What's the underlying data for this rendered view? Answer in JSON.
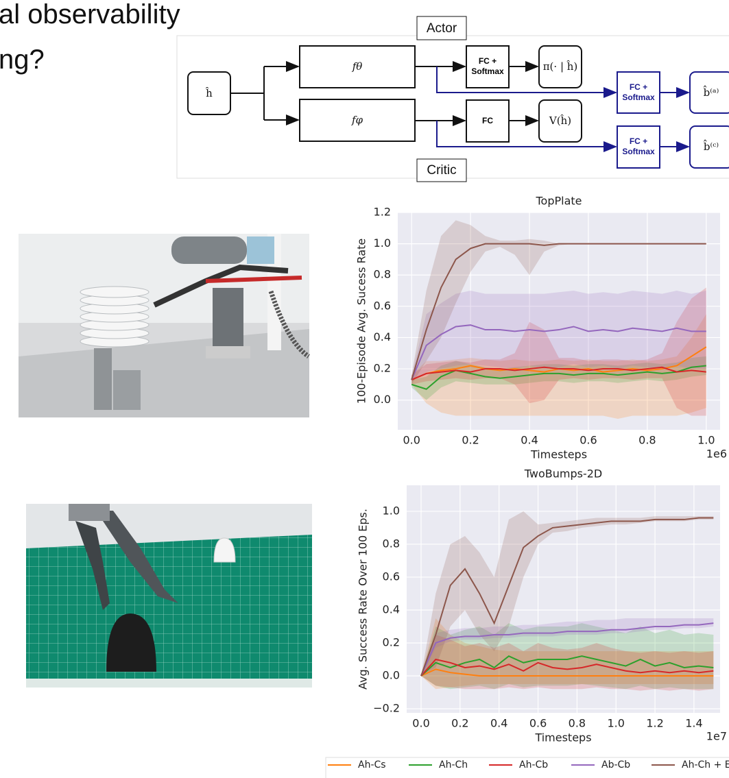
{
  "header": {
    "lines": [
      "al observability",
      "ng?"
    ]
  },
  "diagram": {
    "actor": "Actor",
    "critic": "Critic",
    "nodes": [
      {
        "lines": [
          "ĥ"
        ]
      },
      {
        "lines": [
          "fθ"
        ]
      },
      {
        "lines": [
          "fφ"
        ]
      },
      {
        "lines": [
          "FC +",
          "Softmax"
        ]
      },
      {
        "lines": [
          "π(· | ĥ)"
        ]
      },
      {
        "lines": [
          "FC"
        ]
      },
      {
        "lines": [
          "V(ĥ)"
        ]
      },
      {
        "lines": [
          "FC +",
          "Softmax"
        ]
      },
      {
        "lines": [
          "b̂⁽ᵃ⁾"
        ]
      },
      {
        "lines": [
          "FC +",
          "Softmax"
        ]
      },
      {
        "lines": [
          "b̂⁽ᶜ⁾"
        ]
      }
    ]
  },
  "chart_data": [
    {
      "type": "line",
      "title": "TopPlate",
      "xlabel": "Timesteps",
      "ylabel": "100-Episode Avg. Sucess Rate",
      "x_offset_label": "1e6",
      "x": [
        0,
        0.05,
        0.1,
        0.15,
        0.2,
        0.25,
        0.3,
        0.35,
        0.4,
        0.45,
        0.5,
        0.55,
        0.6,
        0.65,
        0.7,
        0.75,
        0.8,
        0.85,
        0.9,
        0.95,
        1.0
      ],
      "xlim": [
        -0.047,
        1.047
      ],
      "ylim": [
        -0.19,
        1.2
      ],
      "xticks": [
        {
          "value": 0,
          "label": "0.0"
        },
        0.2,
        0.4,
        0.6,
        0.8,
        {
          "value": 1,
          "label": "1.0"
        }
      ],
      "yticks": [
        {
          "value": 0,
          "label": "0.0"
        },
        0.2,
        0.4,
        0.6,
        0.8,
        {
          "value": 1,
          "label": "1.0"
        },
        1.2
      ],
      "grid": true,
      "series": [
        {
          "name": "Ah-Cs",
          "color": "#ff7f0e",
          "values": [
            0.13,
            0.17,
            0.19,
            0.2,
            0.22,
            0.2,
            0.19,
            0.2,
            0.19,
            0.18,
            0.2,
            0.19,
            0.2,
            0.18,
            0.19,
            0.2,
            0.19,
            0.2,
            0.22,
            0.28,
            0.34
          ],
          "lower": [
            0.1,
            -0.02,
            -0.08,
            -0.1,
            -0.1,
            -0.1,
            -0.1,
            -0.1,
            -0.1,
            -0.1,
            -0.1,
            -0.1,
            -0.1,
            -0.1,
            -0.12,
            -0.1,
            -0.1,
            -0.1,
            -0.1,
            -0.08,
            -0.05
          ],
          "upper": [
            0.16,
            0.25,
            0.25,
            0.26,
            0.27,
            0.26,
            0.25,
            0.26,
            0.25,
            0.25,
            0.26,
            0.25,
            0.26,
            0.25,
            0.25,
            0.26,
            0.25,
            0.26,
            0.28,
            0.4,
            0.55
          ]
        },
        {
          "name": "Ah-Ch",
          "color": "#2ca02c",
          "values": [
            0.1,
            0.07,
            0.15,
            0.19,
            0.17,
            0.15,
            0.14,
            0.15,
            0.16,
            0.17,
            0.17,
            0.16,
            0.17,
            0.17,
            0.16,
            0.17,
            0.18,
            0.17,
            0.18,
            0.21,
            0.22
          ],
          "lower": [
            0.08,
            0,
            0.08,
            0.12,
            0.11,
            0.1,
            0.1,
            0.1,
            0.11,
            0.12,
            0.12,
            0.11,
            0.12,
            0.12,
            0.11,
            0.12,
            0.13,
            0.12,
            0.13,
            0.15,
            0.16
          ],
          "upper": [
            0.13,
            0.15,
            0.22,
            0.25,
            0.23,
            0.21,
            0.2,
            0.21,
            0.22,
            0.23,
            0.23,
            0.22,
            0.23,
            0.23,
            0.22,
            0.23,
            0.24,
            0.23,
            0.24,
            0.27,
            0.28
          ]
        },
        {
          "name": "Ah-Cb",
          "color": "#d62728",
          "values": [
            0.13,
            0.17,
            0.18,
            0.19,
            0.18,
            0.2,
            0.2,
            0.19,
            0.2,
            0.21,
            0.2,
            0.2,
            0.19,
            0.2,
            0.2,
            0.19,
            0.2,
            0.21,
            0.18,
            0.19,
            0.18
          ],
          "lower": [
            0.1,
            0.12,
            0.13,
            0.14,
            0.13,
            0.14,
            0.14,
            0.1,
            -0.02,
            0,
            0.13,
            0.14,
            0.13,
            0.14,
            0.14,
            0.13,
            0.14,
            0.14,
            -0.05,
            -0.1,
            -0.1
          ],
          "upper": [
            0.16,
            0.23,
            0.24,
            0.25,
            0.24,
            0.26,
            0.26,
            0.3,
            0.5,
            0.45,
            0.27,
            0.27,
            0.25,
            0.26,
            0.26,
            0.25,
            0.26,
            0.3,
            0.5,
            0.65,
            0.72
          ]
        },
        {
          "name": "Ab-Cb",
          "color": "#9467bd",
          "values": [
            0.13,
            0.35,
            0.42,
            0.47,
            0.48,
            0.45,
            0.45,
            0.44,
            0.45,
            0.44,
            0.45,
            0.47,
            0.44,
            0.45,
            0.44,
            0.46,
            0.45,
            0.44,
            0.46,
            0.44,
            0.44
          ],
          "lower": [
            0.12,
            0.18,
            0.2,
            0.22,
            0.23,
            0.22,
            0.21,
            0.2,
            0.22,
            0.2,
            0.21,
            0.23,
            0.21,
            0.22,
            0.2,
            0.22,
            0.21,
            0.2,
            0.22,
            0.2,
            0.2
          ],
          "upper": [
            0.15,
            0.55,
            0.62,
            0.68,
            0.7,
            0.68,
            0.68,
            0.68,
            0.68,
            0.68,
            0.69,
            0.7,
            0.68,
            0.69,
            0.68,
            0.7,
            0.69,
            0.68,
            0.7,
            0.68,
            0.7
          ]
        },
        {
          "name": "Ah-Ch + E",
          "color": "#8c564b",
          "values": [
            0.13,
            0.45,
            0.72,
            0.9,
            0.97,
            1.0,
            1.0,
            1.0,
            1.0,
            0.99,
            1.0,
            1.0,
            1.0,
            1.0,
            1.0,
            1.0,
            1.0,
            1.0,
            1.0,
            1.0,
            1.0
          ],
          "lower": [
            0.1,
            0.25,
            0.4,
            0.62,
            0.82,
            0.95,
            0.98,
            0.93,
            0.8,
            0.95,
            0.99,
            1,
            1,
            1,
            1,
            1,
            1,
            1,
            1,
            1,
            1
          ],
          "upper": [
            0.16,
            0.7,
            1.05,
            1.15,
            1.12,
            1.05,
            1.02,
            1.02,
            1.03,
            1.02,
            1,
            1,
            1,
            1,
            1,
            1,
            1,
            1,
            1,
            1,
            1
          ]
        }
      ]
    },
    {
      "type": "line",
      "title": "TwoBumps-2D",
      "xlabel": "Timesteps",
      "ylabel": "Avg. Success Rate Over 100 Eps.",
      "x_offset_label": "1e7",
      "x": [
        0,
        0.075,
        0.15,
        0.225,
        0.3,
        0.375,
        0.45,
        0.525,
        0.6,
        0.675,
        0.75,
        0.825,
        0.9,
        0.975,
        1.05,
        1.125,
        1.2,
        1.275,
        1.35,
        1.425,
        1.5
      ],
      "xlim": [
        -0.074,
        1.534
      ],
      "ylim": [
        -0.225,
        1.158
      ],
      "xticks": [
        {
          "value": 0,
          "label": "0.0"
        },
        0.2,
        0.4,
        0.6,
        0.8,
        {
          "value": 1,
          "label": "1.0"
        },
        1.2,
        1.4
      ],
      "yticks": [
        {
          "value": -0.2,
          "label": "−0.2"
        },
        {
          "value": 0,
          "label": "0.0"
        },
        0.2,
        0.4,
        0.6,
        0.8,
        {
          "value": 1,
          "label": "1.0"
        }
      ],
      "grid": true,
      "series": [
        {
          "color": "#ff7f0e",
          "values": [
            0,
            0.04,
            0.02,
            0.01,
            0,
            0,
            0,
            0,
            0,
            0,
            0,
            0,
            0,
            0,
            0,
            0,
            0,
            0,
            0,
            0,
            0
          ],
          "lower": [
            0,
            -0.08,
            -0.07,
            -0.06,
            -0.05,
            -0.05,
            -0.05,
            -0.05,
            -0.05,
            -0.05,
            -0.05,
            -0.05,
            -0.05,
            -0.05,
            -0.05,
            -0.05,
            -0.05,
            -0.05,
            -0.05,
            -0.05,
            -0.05
          ],
          "upper": [
            0,
            0.35,
            0.25,
            0.2,
            0.18,
            0.16,
            0.15,
            0.15,
            0.15,
            0.15,
            0.15,
            0.15,
            0.15,
            0.15,
            0.15,
            0.15,
            0.15,
            0.15,
            0.15,
            0.15,
            0.15
          ]
        },
        {
          "color": "#2ca02c",
          "values": [
            0,
            0.08,
            0.05,
            0.08,
            0.1,
            0.05,
            0.12,
            0.08,
            0.1,
            0.1,
            0.1,
            0.12,
            0.1,
            0.08,
            0.06,
            0.1,
            0.06,
            0.08,
            0.05,
            0.06,
            0.05
          ],
          "lower": [
            0,
            -0.06,
            -0.08,
            -0.07,
            -0.06,
            -0.08,
            -0.05,
            -0.07,
            -0.06,
            -0.06,
            -0.06,
            -0.05,
            -0.06,
            -0.07,
            -0.08,
            -0.06,
            -0.08,
            -0.07,
            -0.08,
            -0.08,
            -0.08
          ],
          "upper": [
            0,
            0.3,
            0.25,
            0.28,
            0.3,
            0.25,
            0.32,
            0.28,
            0.3,
            0.3,
            0.3,
            0.32,
            0.3,
            0.28,
            0.26,
            0.3,
            0.26,
            0.28,
            0.25,
            0.26,
            0.25
          ]
        },
        {
          "color": "#d62728",
          "values": [
            0,
            0.1,
            0.08,
            0.05,
            0.06,
            0.04,
            0.07,
            0.03,
            0.08,
            0.05,
            0.04,
            0.05,
            0.07,
            0.05,
            0.03,
            0.02,
            0.03,
            0.02,
            0.03,
            0.02,
            0.03
          ],
          "lower": [
            0,
            -0.06,
            -0.07,
            -0.08,
            -0.08,
            -0.08,
            -0.07,
            -0.08,
            -0.07,
            -0.08,
            -0.08,
            -0.08,
            -0.07,
            -0.08,
            -0.08,
            -0.09,
            -0.08,
            -0.09,
            -0.08,
            -0.09,
            -0.08
          ],
          "upper": [
            0,
            0.25,
            0.22,
            0.18,
            0.2,
            0.17,
            0.2,
            0.15,
            0.2,
            0.17,
            0.16,
            0.17,
            0.2,
            0.17,
            0.15,
            0.14,
            0.15,
            0.14,
            0.15,
            0.14,
            0.15
          ]
        },
        {
          "color": "#9467bd",
          "values": [
            0,
            0.2,
            0.23,
            0.24,
            0.24,
            0.25,
            0.25,
            0.26,
            0.26,
            0.26,
            0.27,
            0.27,
            0.27,
            0.28,
            0.28,
            0.29,
            0.3,
            0.3,
            0.31,
            0.31,
            0.32
          ],
          "lower": [
            0,
            0.17,
            0.21,
            0.22,
            0.22,
            0.23,
            0.23,
            0.24,
            0.24,
            0.24,
            0.25,
            0.25,
            0.25,
            0.26,
            0.26,
            0.27,
            0.28,
            0.28,
            0.29,
            0.29,
            0.3
          ],
          "upper": [
            0,
            0.26,
            0.28,
            0.29,
            0.29,
            0.3,
            0.3,
            0.31,
            0.31,
            0.32,
            0.33,
            0.33,
            0.34,
            0.34,
            0.35,
            0.35,
            0.35,
            0.35,
            0.35,
            0.35,
            0.35
          ]
        },
        {
          "color": "#8c564b",
          "values": [
            0,
            0.25,
            0.55,
            0.65,
            0.5,
            0.32,
            0.55,
            0.78,
            0.85,
            0.9,
            0.91,
            0.92,
            0.93,
            0.94,
            0.94,
            0.94,
            0.95,
            0.95,
            0.95,
            0.96,
            0.96
          ],
          "lower": [
            0,
            0.05,
            0.3,
            0.4,
            0.25,
            0.15,
            0.3,
            0.6,
            0.8,
            0.87,
            0.88,
            0.9,
            0.91,
            0.92,
            0.92,
            0.93,
            0.94,
            0.94,
            0.94,
            0.95,
            0.95
          ],
          "upper": [
            0,
            0.5,
            0.8,
            0.85,
            0.75,
            0.6,
            0.95,
            1.0,
            0.92,
            0.93,
            0.94,
            0.95,
            0.96,
            0.96,
            0.96,
            0.96,
            0.97,
            0.97,
            0.97,
            0.97,
            0.97
          ]
        }
      ]
    }
  ]
}
